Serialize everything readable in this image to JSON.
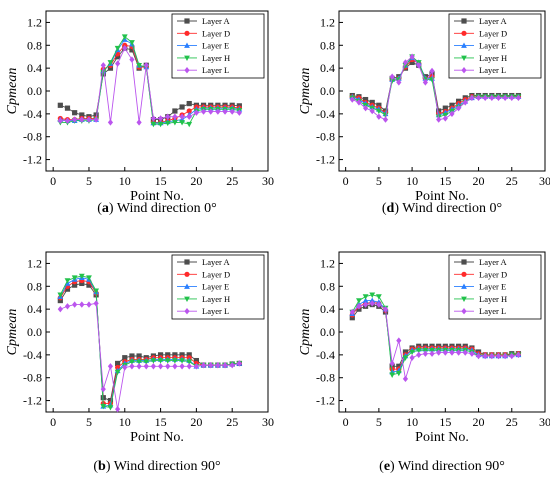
{
  "chart_data": [
    {
      "id": "a",
      "type": "line",
      "caption": {
        "letter": "a",
        "text": " Wind direction 0°"
      },
      "xlabel": "Point No.",
      "ylabel": "Cpmean",
      "xlim": [
        -1,
        30
      ],
      "ylim": [
        -1.4,
        1.4
      ],
      "xticks": [
        0,
        5,
        10,
        15,
        20,
        25,
        30
      ],
      "yticks": [
        -1.2,
        -0.8,
        -0.4,
        0.0,
        0.4,
        0.8,
        1.2
      ],
      "ytick_labels": [
        "-1.2",
        "-0.8",
        "-0.4",
        "0.0",
        "0.4",
        "0.8",
        "1.2"
      ],
      "legend_position": "top-right",
      "x": [
        1,
        2,
        3,
        4,
        5,
        6,
        7,
        8,
        9,
        10,
        11,
        12,
        13,
        14,
        15,
        16,
        17,
        18,
        19,
        20,
        21,
        22,
        23,
        24,
        25,
        26
      ],
      "series": [
        {
          "name": "Layer A",
          "values": [
            -0.25,
            -0.3,
            -0.38,
            -0.42,
            -0.45,
            -0.42,
            0.3,
            0.4,
            0.6,
            0.75,
            0.72,
            0.4,
            0.45,
            -0.5,
            -0.5,
            -0.45,
            -0.35,
            -0.28,
            -0.22,
            -0.25,
            -0.25,
            -0.25,
            -0.25,
            -0.25,
            -0.25,
            -0.26
          ]
        },
        {
          "name": "Layer D",
          "values": [
            -0.48,
            -0.5,
            -0.5,
            -0.48,
            -0.48,
            -0.48,
            0.38,
            0.45,
            0.65,
            0.8,
            0.78,
            0.42,
            0.42,
            -0.55,
            -0.55,
            -0.52,
            -0.48,
            -0.42,
            -0.35,
            -0.28,
            -0.28,
            -0.28,
            -0.28,
            -0.28,
            -0.28,
            -0.3
          ]
        },
        {
          "name": "Layer E",
          "values": [
            -0.5,
            -0.52,
            -0.52,
            -0.5,
            -0.5,
            -0.5,
            0.35,
            0.48,
            0.72,
            0.9,
            0.82,
            0.45,
            0.42,
            -0.56,
            -0.56,
            -0.54,
            -0.52,
            -0.5,
            -0.42,
            -0.32,
            -0.3,
            -0.3,
            -0.3,
            -0.3,
            -0.3,
            -0.32
          ]
        },
        {
          "name": "Layer H",
          "values": [
            -0.55,
            -0.55,
            -0.52,
            -0.52,
            -0.52,
            -0.5,
            0.33,
            0.5,
            0.75,
            0.95,
            0.85,
            0.45,
            0.42,
            -0.58,
            -0.58,
            -0.56,
            -0.55,
            -0.55,
            -0.58,
            -0.35,
            -0.32,
            -0.32,
            -0.32,
            -0.32,
            -0.32,
            -0.34
          ]
        },
        {
          "name": "Layer L",
          "values": [
            -0.52,
            -0.52,
            -0.5,
            -0.5,
            -0.5,
            -0.5,
            0.45,
            -0.55,
            0.48,
            0.75,
            0.55,
            -0.55,
            0.45,
            -0.48,
            -0.48,
            -0.45,
            -0.45,
            -0.45,
            -0.45,
            -0.38,
            -0.36,
            -0.36,
            -0.36,
            -0.36,
            -0.36,
            -0.38
          ]
        }
      ]
    },
    {
      "id": "d",
      "type": "line",
      "caption": {
        "letter": "d",
        "text": " Wind direction 0°"
      },
      "xlabel": "Point No.",
      "ylabel": "Cpmean",
      "xlim": [
        -1,
        30
      ],
      "ylim": [
        -1.4,
        1.4
      ],
      "xticks": [
        0,
        5,
        10,
        15,
        20,
        25,
        30
      ],
      "yticks": [
        -1.2,
        -0.8,
        -0.4,
        0.0,
        0.4,
        0.8,
        1.2
      ],
      "ytick_labels": [
        "-1.2",
        "-0.8",
        "-0.4",
        "0.0",
        "0.4",
        "0.8",
        "1.2"
      ],
      "legend_position": "top-right",
      "x": [
        1,
        2,
        3,
        4,
        5,
        6,
        7,
        8,
        9,
        10,
        11,
        12,
        13,
        14,
        15,
        16,
        17,
        18,
        19,
        20,
        21,
        22,
        23,
        24,
        25,
        26
      ],
      "series": [
        {
          "name": "Layer A",
          "values": [
            -0.08,
            -0.1,
            -0.15,
            -0.2,
            -0.25,
            -0.35,
            0.22,
            0.25,
            0.4,
            0.5,
            0.45,
            0.25,
            0.3,
            -0.35,
            -0.3,
            -0.25,
            -0.18,
            -0.12,
            -0.08,
            -0.08,
            -0.08,
            -0.08,
            -0.08,
            -0.08,
            -0.08,
            -0.08
          ]
        },
        {
          "name": "Layer D",
          "values": [
            -0.1,
            -0.12,
            -0.2,
            -0.25,
            -0.3,
            -0.38,
            0.2,
            0.22,
            0.42,
            0.55,
            0.48,
            0.22,
            0.25,
            -0.4,
            -0.36,
            -0.3,
            -0.22,
            -0.15,
            -0.1,
            -0.1,
            -0.1,
            -0.1,
            -0.1,
            -0.1,
            -0.1,
            -0.1
          ]
        },
        {
          "name": "Layer E",
          "values": [
            -0.1,
            -0.15,
            -0.22,
            -0.28,
            -0.32,
            -0.4,
            0.2,
            0.22,
            0.45,
            0.58,
            0.5,
            0.22,
            0.22,
            -0.42,
            -0.38,
            -0.32,
            -0.25,
            -0.18,
            -0.12,
            -0.1,
            -0.1,
            -0.1,
            -0.1,
            -0.1,
            -0.1,
            -0.1
          ]
        },
        {
          "name": "Layer H",
          "values": [
            -0.12,
            -0.18,
            -0.25,
            -0.3,
            -0.35,
            -0.42,
            0.18,
            0.2,
            0.45,
            0.6,
            0.5,
            0.2,
            0.2,
            -0.45,
            -0.42,
            -0.35,
            -0.28,
            -0.2,
            -0.12,
            -0.1,
            -0.1,
            -0.1,
            -0.1,
            -0.1,
            -0.1,
            -0.1
          ]
        },
        {
          "name": "Layer L",
          "values": [
            -0.15,
            -0.2,
            -0.3,
            -0.35,
            -0.45,
            -0.5,
            0.25,
            0.15,
            0.5,
            0.6,
            0.45,
            0.15,
            0.35,
            -0.5,
            -0.48,
            -0.4,
            -0.3,
            -0.2,
            -0.12,
            -0.12,
            -0.12,
            -0.12,
            -0.12,
            -0.12,
            -0.12,
            -0.12
          ]
        }
      ]
    },
    {
      "id": "b",
      "type": "line",
      "caption": {
        "letter": "b",
        "text": " Wind direction 90°"
      },
      "xlabel": "Point No.",
      "ylabel": "Cpmean",
      "xlim": [
        -1,
        30
      ],
      "ylim": [
        -1.4,
        1.4
      ],
      "xticks": [
        0,
        5,
        10,
        15,
        20,
        25,
        30
      ],
      "yticks": [
        -1.2,
        -0.8,
        -0.4,
        0.0,
        0.4,
        0.8,
        1.2
      ],
      "ytick_labels": [
        "-1.2",
        "-0.8",
        "-0.4",
        "0.0",
        "0.4",
        "0.8",
        "1.2"
      ],
      "legend_position": "top-right",
      "x": [
        1,
        2,
        3,
        4,
        5,
        6,
        7,
        8,
        9,
        10,
        11,
        12,
        13,
        14,
        15,
        16,
        17,
        18,
        19,
        20,
        21,
        22,
        23,
        24,
        25,
        26
      ],
      "series": [
        {
          "name": "Layer A",
          "values": [
            0.55,
            0.75,
            0.82,
            0.85,
            0.82,
            0.65,
            -1.15,
            -1.2,
            -0.55,
            -0.45,
            -0.42,
            -0.42,
            -0.45,
            -0.42,
            -0.4,
            -0.4,
            -0.4,
            -0.4,
            -0.4,
            -0.5,
            -0.58,
            -0.58,
            -0.58,
            -0.58,
            -0.56,
            -0.55
          ]
        },
        {
          "name": "Layer D",
          "values": [
            0.6,
            0.8,
            0.88,
            0.9,
            0.88,
            0.68,
            -1.25,
            -1.25,
            -0.62,
            -0.52,
            -0.48,
            -0.48,
            -0.48,
            -0.45,
            -0.45,
            -0.45,
            -0.45,
            -0.45,
            -0.45,
            -0.55,
            -0.58,
            -0.58,
            -0.58,
            -0.58,
            -0.56,
            -0.55
          ]
        },
        {
          "name": "Layer E",
          "values": [
            0.62,
            0.85,
            0.92,
            0.95,
            0.92,
            0.7,
            -1.3,
            -1.28,
            -0.68,
            -0.55,
            -0.5,
            -0.5,
            -0.5,
            -0.48,
            -0.48,
            -0.48,
            -0.48,
            -0.48,
            -0.5,
            -0.6,
            -0.58,
            -0.58,
            -0.58,
            -0.58,
            -0.56,
            -0.55
          ]
        },
        {
          "name": "Layer H",
          "values": [
            0.65,
            0.9,
            0.95,
            0.98,
            0.95,
            0.72,
            -1.3,
            -1.32,
            -0.7,
            -0.58,
            -0.52,
            -0.52,
            -0.52,
            -0.5,
            -0.5,
            -0.5,
            -0.5,
            -0.5,
            -0.52,
            -0.6,
            -0.58,
            -0.58,
            -0.58,
            -0.58,
            -0.56,
            -0.55
          ]
        },
        {
          "name": "Layer L",
          "values": [
            0.4,
            0.45,
            0.48,
            0.48,
            0.48,
            0.5,
            -1.0,
            -0.6,
            -1.35,
            -0.62,
            -0.6,
            -0.6,
            -0.6,
            -0.6,
            -0.6,
            -0.6,
            -0.6,
            -0.6,
            -0.6,
            -0.6,
            -0.58,
            -0.58,
            -0.58,
            -0.58,
            -0.58,
            -0.55
          ]
        }
      ]
    },
    {
      "id": "e",
      "type": "line",
      "caption": {
        "letter": "e",
        "text": " Wind direction 90°"
      },
      "xlabel": "Point No.",
      "ylabel": "Cpmean",
      "xlim": [
        -1,
        30
      ],
      "ylim": [
        -1.4,
        1.4
      ],
      "xticks": [
        0,
        5,
        10,
        15,
        20,
        25,
        30
      ],
      "yticks": [
        -1.2,
        -0.8,
        -0.4,
        0.0,
        0.4,
        0.8,
        1.2
      ],
      "ytick_labels": [
        "-1.2",
        "-0.8",
        "-0.4",
        "0.0",
        "0.4",
        "0.8",
        "1.2"
      ],
      "legend_position": "top-right",
      "x": [
        1,
        2,
        3,
        4,
        5,
        6,
        7,
        8,
        9,
        10,
        11,
        12,
        13,
        14,
        15,
        16,
        17,
        18,
        19,
        20,
        21,
        22,
        23,
        24,
        25,
        26
      ],
      "series": [
        {
          "name": "Layer A",
          "values": [
            0.25,
            0.4,
            0.45,
            0.48,
            0.45,
            0.35,
            -0.6,
            -0.6,
            -0.35,
            -0.28,
            -0.25,
            -0.25,
            -0.25,
            -0.25,
            -0.25,
            -0.25,
            -0.25,
            -0.25,
            -0.28,
            -0.35,
            -0.4,
            -0.4,
            -0.4,
            -0.4,
            -0.38,
            -0.38
          ]
        },
        {
          "name": "Layer D",
          "values": [
            0.3,
            0.45,
            0.5,
            0.52,
            0.5,
            0.38,
            -0.65,
            -0.65,
            -0.4,
            -0.3,
            -0.28,
            -0.28,
            -0.28,
            -0.28,
            -0.28,
            -0.28,
            -0.28,
            -0.28,
            -0.3,
            -0.38,
            -0.4,
            -0.4,
            -0.4,
            -0.4,
            -0.4,
            -0.38
          ]
        },
        {
          "name": "Layer E",
          "values": [
            0.32,
            0.48,
            0.55,
            0.55,
            0.52,
            0.4,
            -0.7,
            -0.68,
            -0.42,
            -0.32,
            -0.3,
            -0.3,
            -0.3,
            -0.3,
            -0.3,
            -0.3,
            -0.3,
            -0.3,
            -0.32,
            -0.4,
            -0.42,
            -0.42,
            -0.42,
            -0.42,
            -0.4,
            -0.4
          ]
        },
        {
          "name": "Layer H",
          "values": [
            0.35,
            0.55,
            0.62,
            0.65,
            0.62,
            0.42,
            -0.75,
            -0.72,
            -0.45,
            -0.35,
            -0.32,
            -0.32,
            -0.32,
            -0.32,
            -0.32,
            -0.32,
            -0.32,
            -0.32,
            -0.35,
            -0.42,
            -0.42,
            -0.42,
            -0.42,
            -0.42,
            -0.4,
            -0.4
          ]
        },
        {
          "name": "Layer L",
          "values": [
            0.35,
            0.45,
            0.48,
            0.5,
            0.48,
            0.4,
            -0.55,
            -0.15,
            -0.82,
            -0.45,
            -0.4,
            -0.38,
            -0.38,
            -0.36,
            -0.36,
            -0.36,
            -0.36,
            -0.36,
            -0.38,
            -0.42,
            -0.42,
            -0.42,
            -0.42,
            -0.42,
            -0.42,
            -0.4
          ]
        }
      ]
    }
  ],
  "series_styles": [
    {
      "name": "Layer A",
      "color": "#4d4d4d",
      "marker": "square"
    },
    {
      "name": "Layer D",
      "color": "#ff2a2a",
      "marker": "circle"
    },
    {
      "name": "Layer E",
      "color": "#2a7fff",
      "marker": "triangle-up"
    },
    {
      "name": "Layer H",
      "color": "#22c24b",
      "marker": "triangle-down"
    },
    {
      "name": "Layer L",
      "color": "#bb55ee",
      "marker": "diamond"
    }
  ]
}
